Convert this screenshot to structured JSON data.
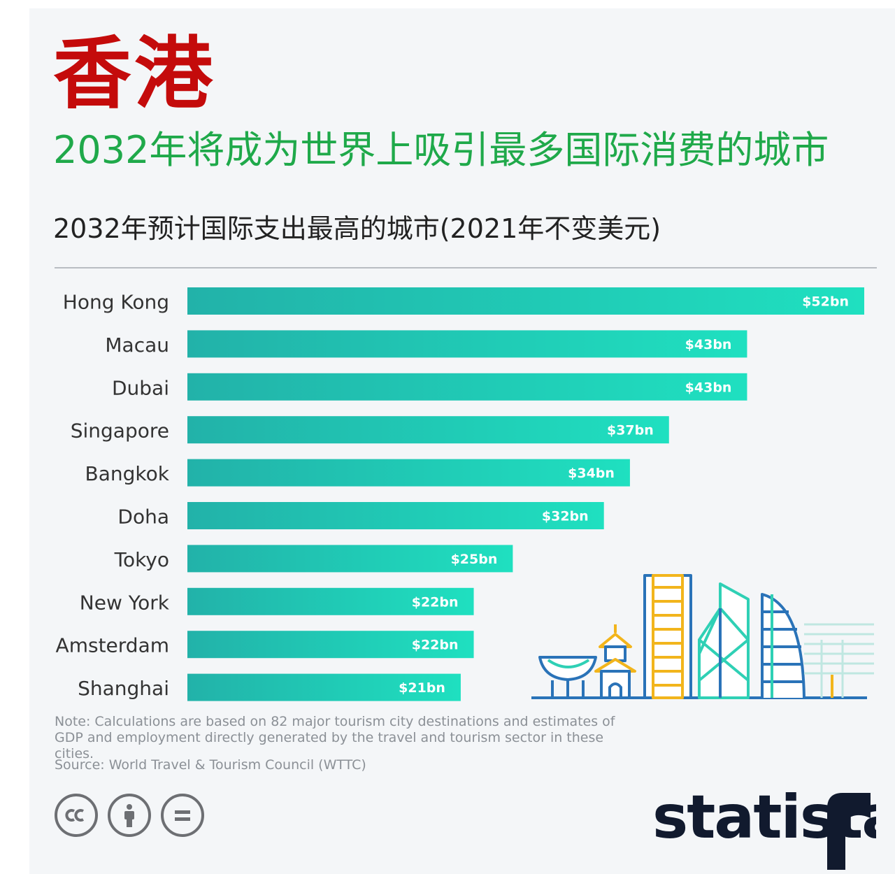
{
  "header": {
    "title": "香港",
    "subtitle": "2032年将成为世界上吸引最多国际消费的城市"
  },
  "chart_data": {
    "type": "bar",
    "orientation": "horizontal",
    "title": "2032年预计国际支出最高的城市(2021年不变美元)",
    "categories": [
      "Hong Kong",
      "Macau",
      "Dubai",
      "Singapore",
      "Bangkok",
      "Doha",
      "Tokyo",
      "New York",
      "Amsterdam",
      "Shanghai"
    ],
    "values": [
      52,
      43,
      43,
      37,
      34,
      32,
      25,
      22,
      22,
      21
    ],
    "data_labels": [
      "$52bn",
      "$43bn",
      "$43bn",
      "$37bn",
      "$34bn",
      "$32bn",
      "$25bn",
      "$22bn",
      "$22bn",
      "$21bn"
    ],
    "unit": "bn USD",
    "xlim": [
      0,
      52
    ],
    "grid": false,
    "legend": "none",
    "bar_color_start": "#22b2a9",
    "bar_color_end": "#1fe0c0"
  },
  "footer": {
    "note": "Note: Calculations are based on 82 major tourism city destinations and estimates of GDP and employment directly generated by the travel and tourism sector in these cities.",
    "source": "Source: World Travel & Tourism Council (WTTC)",
    "license_icons": [
      "cc-icon",
      "attribution-icon",
      "no-derivatives-icon"
    ],
    "brand": "statista"
  },
  "colors": {
    "title_red": "#c40b0b",
    "subtitle_green": "#1fa94a",
    "skyline_blue": "#2a73b8",
    "skyline_teal": "#2fd0b5",
    "skyline_yellow": "#f2b51c"
  }
}
